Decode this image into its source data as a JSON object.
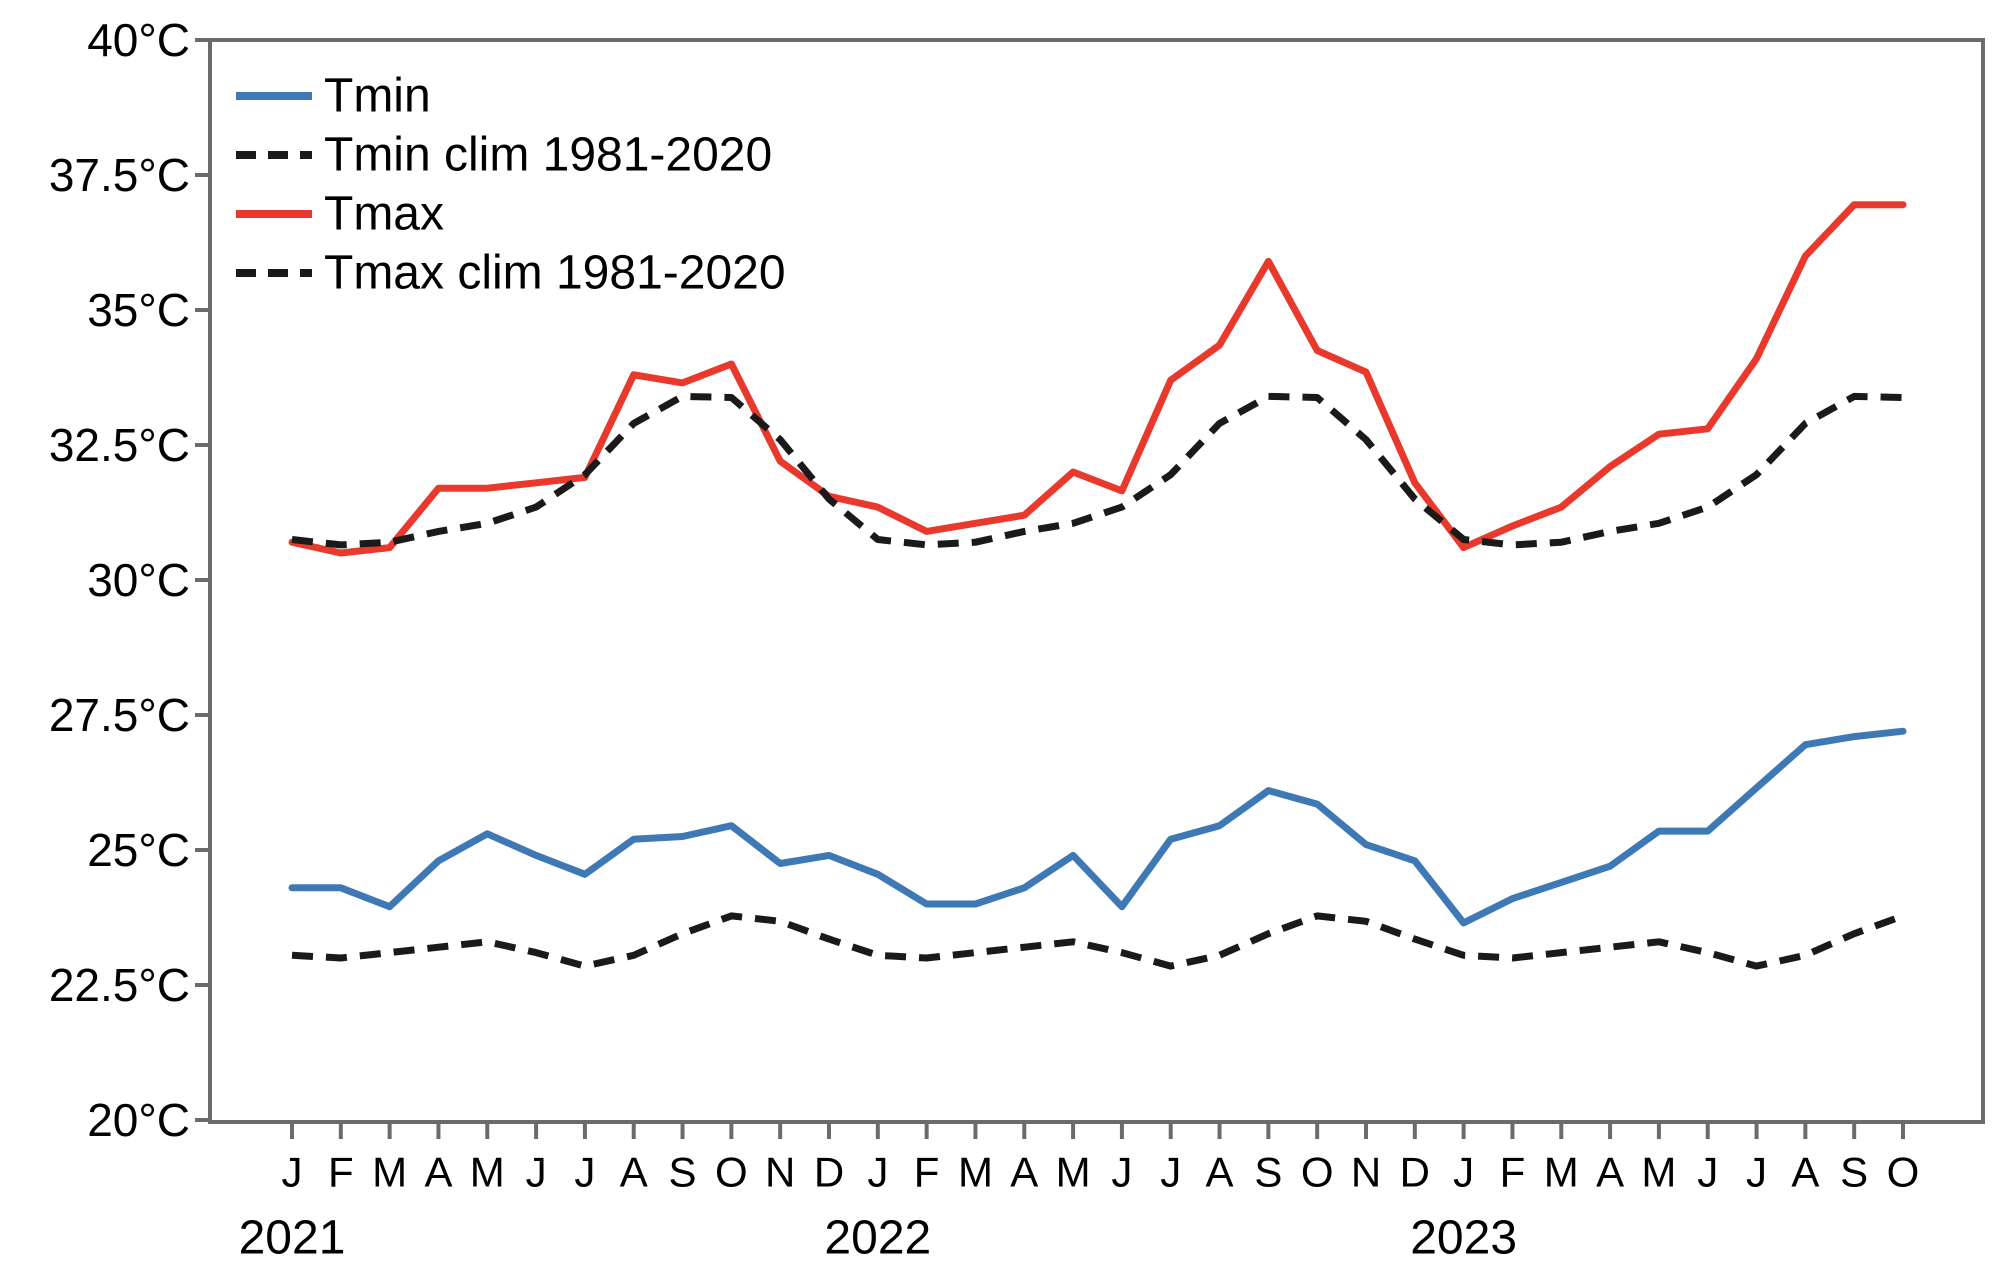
{
  "chart_data": {
    "type": "line",
    "title": "",
    "xlabel": "",
    "ylabel": "",
    "grid": false,
    "legend_position": "top-left",
    "ylim": [
      20,
      40
    ],
    "y_ticks": [
      {
        "value": 20,
        "label": "20°C"
      },
      {
        "value": 22.5,
        "label": "22.5°C"
      },
      {
        "value": 25,
        "label": "25°C"
      },
      {
        "value": 27.5,
        "label": "27.5°C"
      },
      {
        "value": 30,
        "label": "30°C"
      },
      {
        "value": 32.5,
        "label": "32.5°C"
      },
      {
        "value": 35,
        "label": "35°C"
      },
      {
        "value": 37.5,
        "label": "37.5°C"
      },
      {
        "value": 40,
        "label": "40°C"
      }
    ],
    "month_labels": [
      "J",
      "F",
      "M",
      "A",
      "M",
      "J",
      "J",
      "A",
      "S",
      "O",
      "N",
      "D",
      "J",
      "F",
      "M",
      "A",
      "M",
      "J",
      "J",
      "A",
      "S",
      "O",
      "N",
      "D",
      "J",
      "F",
      "M",
      "A",
      "M",
      "J",
      "J",
      "A",
      "S",
      "O"
    ],
    "year_labels": [
      {
        "label": "2021",
        "month_index": 0
      },
      {
        "label": "2022",
        "month_index": 12
      },
      {
        "label": "2023",
        "month_index": 24
      }
    ],
    "colors": {
      "tmin": "#3E79B5",
      "tmax": "#E8392C",
      "clim": "#1A1A1A",
      "axis": "#6B6B6B",
      "text": "#000000"
    },
    "series": [
      {
        "name": "Tmin",
        "style": "solid",
        "color_key": "tmin",
        "values": [
          24.3,
          24.3,
          23.95,
          24.8,
          25.3,
          24.9,
          24.55,
          25.2,
          25.25,
          25.45,
          24.75,
          24.9,
          24.55,
          24.0,
          24.0,
          24.3,
          24.9,
          23.95,
          25.2,
          25.45,
          26.1,
          25.85,
          25.1,
          24.8,
          23.65,
          24.1,
          24.4,
          24.7,
          25.35,
          25.35,
          26.15,
          26.95,
          27.1,
          27.2
        ]
      },
      {
        "name": "Tmin clim 1981-2020",
        "style": "dashed",
        "color_key": "clim",
        "values": [
          23.05,
          23.0,
          23.1,
          23.2,
          23.3,
          23.1,
          22.85,
          23.05,
          23.45,
          23.78,
          23.68,
          23.35,
          23.05,
          23.0,
          23.1,
          23.2,
          23.3,
          23.1,
          22.85,
          23.05,
          23.45,
          23.78,
          23.68,
          23.35,
          23.05,
          23.0,
          23.1,
          23.2,
          23.3,
          23.1,
          22.85,
          23.05,
          23.45,
          23.78
        ]
      },
      {
        "name": "Tmax",
        "style": "solid",
        "color_key": "tmax",
        "values": [
          30.7,
          30.5,
          30.6,
          31.7,
          31.7,
          31.8,
          31.9,
          33.8,
          33.65,
          34.0,
          32.2,
          31.55,
          31.35,
          30.9,
          31.05,
          31.2,
          32.0,
          31.65,
          33.7,
          34.35,
          35.9,
          34.25,
          33.85,
          31.8,
          30.6,
          31.0,
          31.35,
          32.1,
          32.7,
          32.8,
          34.1,
          36.0,
          36.95,
          36.95
        ]
      },
      {
        "name": "Tmax clim 1981-2020",
        "style": "dashed",
        "color_key": "clim",
        "values": [
          30.75,
          30.65,
          30.7,
          30.9,
          31.05,
          31.35,
          31.95,
          32.9,
          33.4,
          33.38,
          32.6,
          31.5,
          30.75,
          30.65,
          30.7,
          30.9,
          31.05,
          31.35,
          31.95,
          32.9,
          33.4,
          33.38,
          32.6,
          31.5,
          30.75,
          30.65,
          30.7,
          30.9,
          31.05,
          31.35,
          31.95,
          32.9,
          33.4,
          33.38
        ]
      }
    ],
    "legend": [
      "Tmin",
      "Tmin clim 1981-2020",
      "Tmax",
      "Tmax clim 1981-2020"
    ]
  }
}
